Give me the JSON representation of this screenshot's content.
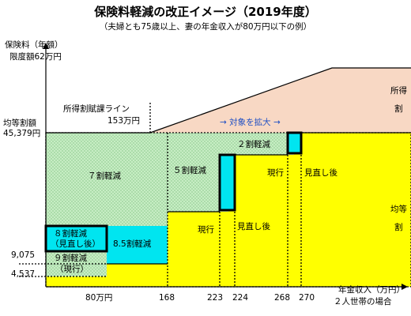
{
  "header": {
    "title": "保険料軽減の改正イメージ（2019年度）",
    "subtitle": "（夫婦とも75歳以上、妻の年金収入が80万円以下の例）"
  },
  "axes": {
    "y_title": "保険料（年額）",
    "y_limit_label": "限度額62万円",
    "y_flat_label_1": "均等割額",
    "y_flat_label_2": "45,379円",
    "y_tick_9075": "9,075",
    "y_tick_4537": "4,537",
    "x_title_1": "年金収入（万円）",
    "x_title_2": "２人世帯の場合",
    "x_ticks": [
      "80万円",
      "168",
      "223",
      "224",
      "268",
      "270"
    ]
  },
  "regions": {
    "income_share_1": "所得",
    "income_share_2": "割",
    "flat_share_1": "均等",
    "flat_share_2": "割",
    "income_line_1": "所得割賦課ライン",
    "income_line_2": "153万円",
    "expand_label": "→ 対象を拡大 →"
  },
  "reductions": {
    "r7": "７割軽減",
    "r5": "５割軽減",
    "r2": "２割軽減",
    "r85": "8.5割軽減",
    "r8_1": "８割軽減",
    "r8_2": "（見直し後）",
    "r9_1": "９割軽減",
    "r9_2": "（現行）",
    "current_a": "現行",
    "revised_a": "見直し後",
    "current_b": "現行",
    "revised_b": "見直し後"
  },
  "colors": {
    "income_area": "#f8d8c4",
    "flat_area": "#ffff00",
    "reduction_area": "#bfe8bf",
    "highlight": "#00e5f0",
    "accent_text": "#1f4fc4"
  }
}
